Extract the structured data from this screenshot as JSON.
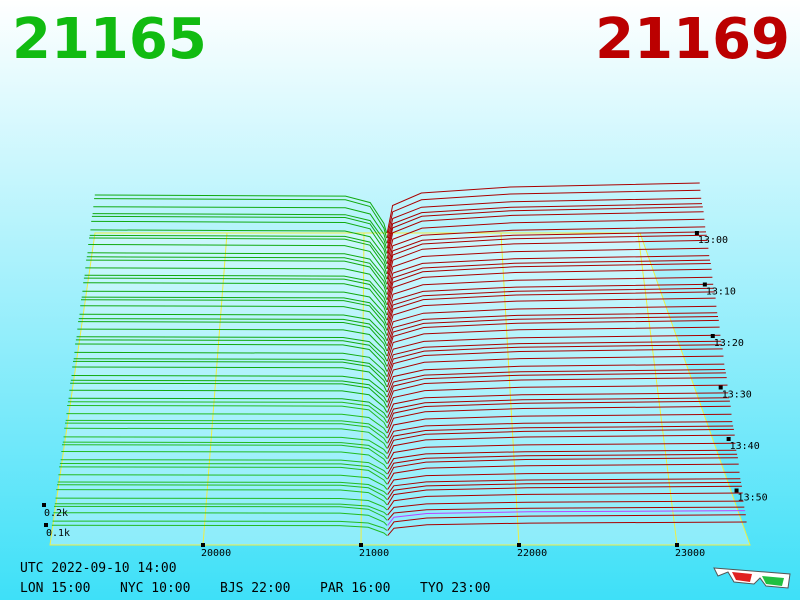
{
  "header": {
    "bid": 21165,
    "ask": 21169
  },
  "axis": {
    "price_ticks": [
      20000,
      21000,
      22000,
      23000
    ],
    "time_ticks": [
      "13:00",
      "13:10",
      "13:20",
      "13:30",
      "13:40",
      "13:50"
    ],
    "depth_ticks": [
      "0.2k",
      "0.1k"
    ]
  },
  "footer": {
    "utc": "UTC 2022-09-10 14:00",
    "zones": [
      "LON 15:00",
      "NYC 10:00",
      "BJS 22:00",
      "PAR 16:00",
      "TYO 23:00"
    ]
  }
}
